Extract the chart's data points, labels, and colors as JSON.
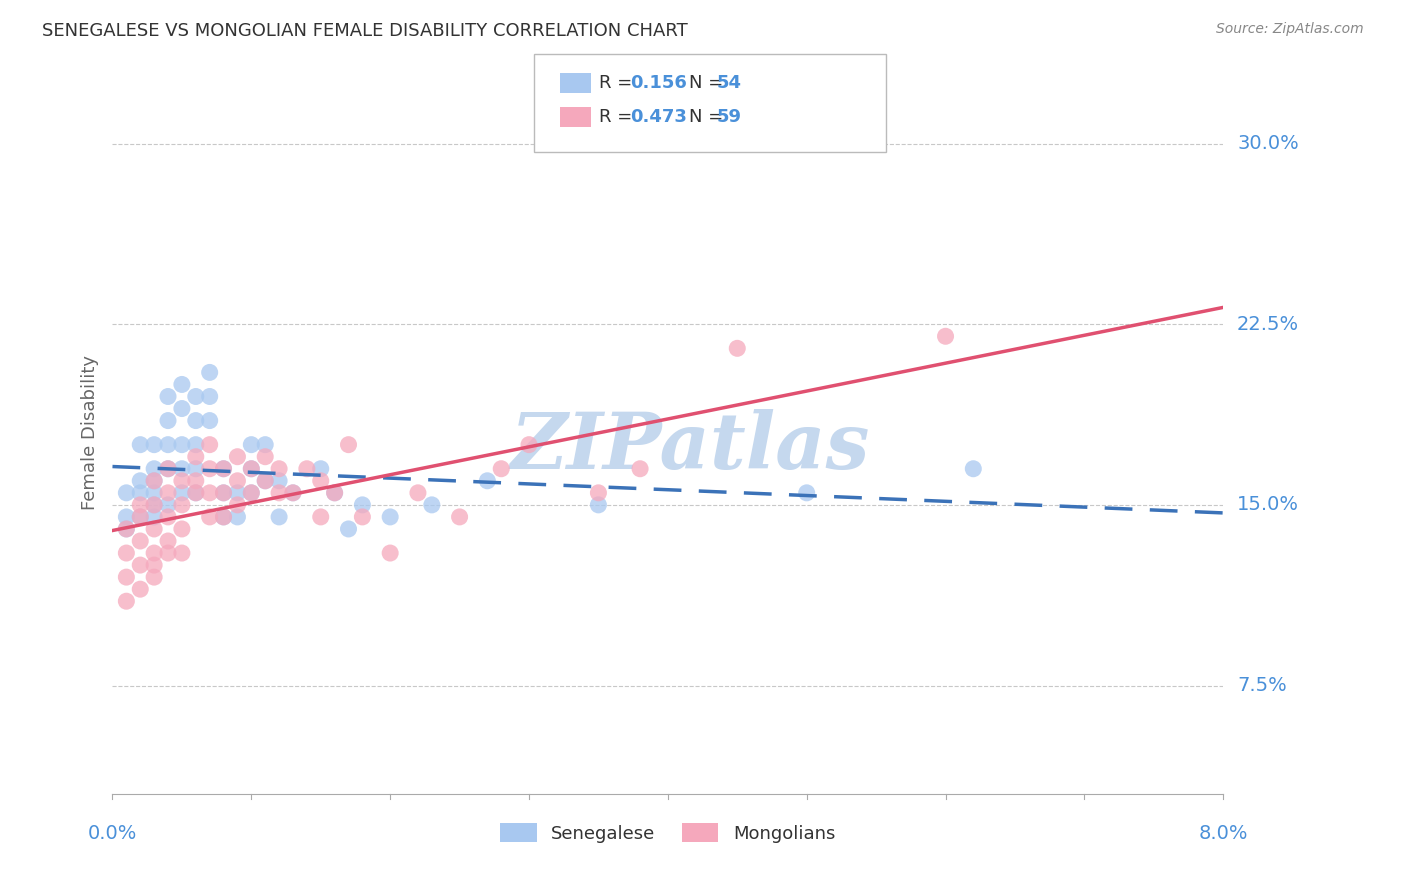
{
  "title": "SENEGALESE VS MONGOLIAN FEMALE DISABILITY CORRELATION CHART",
  "source": "Source: ZipAtlas.com",
  "ylabel": "Female Disability",
  "ytick_labels": [
    "7.5%",
    "15.0%",
    "22.5%",
    "30.0%"
  ],
  "ytick_values": [
    0.075,
    0.15,
    0.225,
    0.3
  ],
  "xlim": [
    0.0,
    0.08
  ],
  "ylim": [
    0.03,
    0.33
  ],
  "legend_labels": [
    "Senegalese",
    "Mongolians"
  ],
  "blue_color": "#A8C8F0",
  "pink_color": "#F5A8BC",
  "blue_line_color": "#3B72B8",
  "pink_line_color": "#E05070",
  "watermark_color": "#C5D8EE",
  "title_color": "#333333",
  "axis_label_color": "#666666",
  "tick_color": "#4A90D9",
  "grid_color": "#C8C8C8",
  "senegalese_x": [
    0.001,
    0.001,
    0.001,
    0.002,
    0.002,
    0.002,
    0.002,
    0.003,
    0.003,
    0.003,
    0.003,
    0.003,
    0.003,
    0.004,
    0.004,
    0.004,
    0.004,
    0.004,
    0.005,
    0.005,
    0.005,
    0.005,
    0.005,
    0.006,
    0.006,
    0.006,
    0.006,
    0.006,
    0.007,
    0.007,
    0.007,
    0.008,
    0.008,
    0.008,
    0.009,
    0.009,
    0.01,
    0.01,
    0.01,
    0.011,
    0.011,
    0.012,
    0.012,
    0.013,
    0.015,
    0.016,
    0.017,
    0.018,
    0.02,
    0.023,
    0.027,
    0.035,
    0.05,
    0.062
  ],
  "senegalese_y": [
    0.145,
    0.155,
    0.14,
    0.155,
    0.16,
    0.175,
    0.145,
    0.165,
    0.155,
    0.145,
    0.175,
    0.16,
    0.15,
    0.185,
    0.175,
    0.195,
    0.165,
    0.15,
    0.2,
    0.19,
    0.175,
    0.165,
    0.155,
    0.195,
    0.185,
    0.175,
    0.165,
    0.155,
    0.205,
    0.195,
    0.185,
    0.155,
    0.145,
    0.165,
    0.155,
    0.145,
    0.175,
    0.165,
    0.155,
    0.175,
    0.16,
    0.16,
    0.145,
    0.155,
    0.165,
    0.155,
    0.14,
    0.15,
    0.145,
    0.15,
    0.16,
    0.15,
    0.155,
    0.165
  ],
  "mongolian_x": [
    0.001,
    0.001,
    0.001,
    0.001,
    0.002,
    0.002,
    0.002,
    0.002,
    0.002,
    0.003,
    0.003,
    0.003,
    0.003,
    0.003,
    0.003,
    0.004,
    0.004,
    0.004,
    0.004,
    0.004,
    0.005,
    0.005,
    0.005,
    0.005,
    0.006,
    0.006,
    0.006,
    0.007,
    0.007,
    0.007,
    0.007,
    0.008,
    0.008,
    0.008,
    0.009,
    0.009,
    0.009,
    0.01,
    0.01,
    0.011,
    0.011,
    0.012,
    0.012,
    0.013,
    0.014,
    0.015,
    0.015,
    0.016,
    0.017,
    0.018,
    0.02,
    0.022,
    0.025,
    0.028,
    0.03,
    0.035,
    0.038,
    0.045,
    0.06
  ],
  "mongolian_y": [
    0.12,
    0.11,
    0.13,
    0.14,
    0.135,
    0.145,
    0.125,
    0.115,
    0.15,
    0.14,
    0.13,
    0.125,
    0.15,
    0.16,
    0.12,
    0.155,
    0.145,
    0.165,
    0.135,
    0.13,
    0.16,
    0.15,
    0.14,
    0.13,
    0.17,
    0.16,
    0.155,
    0.175,
    0.165,
    0.155,
    0.145,
    0.165,
    0.155,
    0.145,
    0.17,
    0.16,
    0.15,
    0.165,
    0.155,
    0.17,
    0.16,
    0.165,
    0.155,
    0.155,
    0.165,
    0.16,
    0.145,
    0.155,
    0.175,
    0.145,
    0.13,
    0.155,
    0.145,
    0.165,
    0.175,
    0.155,
    0.165,
    0.215,
    0.22
  ]
}
